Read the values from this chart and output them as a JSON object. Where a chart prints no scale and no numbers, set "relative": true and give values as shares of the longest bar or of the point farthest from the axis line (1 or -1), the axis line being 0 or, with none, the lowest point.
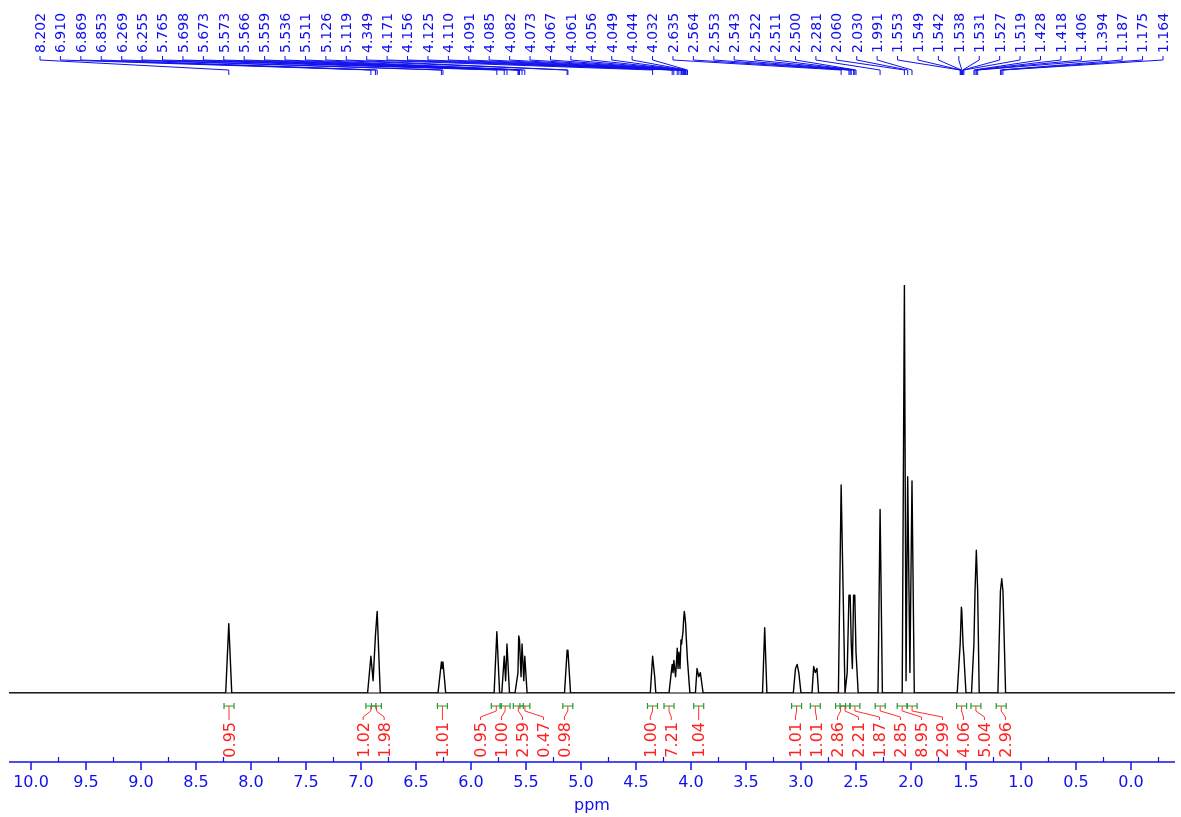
{
  "chart_data": {
    "type": "line",
    "relative": true,
    "color": "#000000",
    "xlabel": "ppm",
    "xlim": [
      10.2,
      -0.4
    ],
    "xticks": [
      {
        "value": 10,
        "label": "10.0"
      },
      9.5,
      {
        "value": 9,
        "label": "9.0"
      },
      8.5,
      {
        "value": 8,
        "label": "8.0"
      },
      7.5,
      {
        "value": 7,
        "label": "7.0"
      },
      6.5,
      {
        "value": 6,
        "label": "6.0"
      },
      5.5,
      {
        "value": 5,
        "label": "5.0"
      },
      4.5,
      {
        "value": 4,
        "label": "4.0"
      },
      3.5,
      {
        "value": 3,
        "label": "3.0"
      },
      2.5,
      {
        "value": 2,
        "label": "2.0"
      },
      1.5,
      {
        "value": 1,
        "label": "1.0"
      },
      0.5,
      {
        "value": 0,
        "label": "0.0"
      }
    ],
    "x": [
      10.2,
      8.23,
      8.202,
      8.175,
      6.94,
      6.91,
      6.89,
      6.869,
      6.853,
      6.825,
      6.3,
      6.269,
      6.262,
      6.255,
      6.23,
      5.79,
      5.765,
      5.74,
      5.72,
      5.698,
      5.685,
      5.673,
      5.65,
      5.6,
      5.573,
      5.566,
      5.559,
      5.545,
      5.536,
      5.52,
      5.511,
      5.49,
      5.15,
      5.126,
      5.122,
      5.119,
      5.095,
      4.37,
      4.349,
      4.33,
      4.32,
      4.2,
      4.171,
      4.163,
      4.156,
      4.14,
      4.125,
      4.118,
      4.11,
      4.1,
      4.091,
      4.085,
      4.082,
      4.073,
      4.067,
      4.061,
      4.056,
      4.049,
      4.044,
      4.032,
      4.01,
      3.96,
      3.945,
      3.93,
      3.915,
      3.89,
      3.35,
      3.33,
      3.31,
      3.07,
      3.05,
      3.035,
      3.02,
      3.0,
      2.9,
      2.885,
      2.87,
      2.855,
      2.84,
      2.66,
      2.635,
      2.6,
      2.58,
      2.564,
      2.553,
      2.543,
      2.533,
      2.522,
      2.511,
      2.5,
      2.48,
      2.3,
      2.281,
      2.26,
      2.08,
      2.06,
      2.045,
      2.03,
      2.01,
      1.991,
      1.97,
      1.58,
      1.553,
      1.549,
      1.542,
      1.538,
      1.531,
      1.527,
      1.519,
      1.5,
      1.45,
      1.428,
      1.418,
      1.406,
      1.394,
      1.38,
      1.21,
      1.187,
      1.175,
      1.164,
      1.14,
      -0.4
    ],
    "values": [
      0,
      0,
      0.17,
      0,
      0,
      0.09,
      0.03,
      0.14,
      0.2,
      0,
      0,
      0.076,
      0.06,
      0.076,
      0,
      0,
      0.15,
      0,
      0,
      0.09,
      0.03,
      0.12,
      0,
      0,
      0.05,
      0.14,
      0.13,
      0.04,
      0.12,
      0.03,
      0.09,
      0,
      0,
      0.105,
      0.09,
      0.105,
      0,
      0,
      0.09,
      0.04,
      0,
      0,
      0.07,
      0.05,
      0.08,
      0.04,
      0.11,
      0.06,
      0.1,
      0.06,
      0.13,
      0.12,
      0.13,
      0.15,
      0.18,
      0.2,
      0.19,
      0.17,
      0.14,
      0.08,
      0,
      0,
      0.06,
      0.04,
      0.05,
      0,
      0,
      0.16,
      0,
      0,
      0.06,
      0.07,
      0.05,
      0,
      0,
      0.065,
      0.05,
      0.06,
      0,
      0,
      0.51,
      0,
      0.05,
      0.24,
      0.24,
      0.12,
      0.06,
      0.24,
      0.24,
      0.1,
      0,
      0,
      0.45,
      0,
      0,
      1,
      0.03,
      0.53,
      0.05,
      0.52,
      0,
      0,
      0.12,
      0.15,
      0.21,
      0.2,
      0.15,
      0.12,
      0.09,
      0,
      0,
      0.12,
      0.25,
      0.35,
      0.25,
      0,
      0,
      0.25,
      0.28,
      0.25,
      0,
      0
    ],
    "annotations": [
      "8.202",
      "6.910",
      "6.869",
      "6.853",
      "6.269",
      "6.255",
      "5.765",
      "5.698",
      "5.673",
      "5.573",
      "5.566",
      "5.559",
      "5.536",
      "5.511",
      "5.126",
      "5.119",
      "4.349",
      "4.171",
      "4.156",
      "4.125",
      "4.110",
      "4.091",
      "4.085",
      "4.082",
      "4.073",
      "4.067",
      "4.061",
      "4.056",
      "4.049",
      "4.044",
      "4.032",
      "2.635",
      "2.564",
      "2.553",
      "2.543",
      "2.522",
      "2.511",
      "2.500",
      "2.281",
      "2.060",
      "2.030",
      "1.991",
      "1.553",
      "1.549",
      "1.542",
      "1.538",
      "1.531",
      "1.527",
      "1.519",
      "1.428",
      "1.418",
      "1.406",
      "1.394",
      "1.187",
      "1.175",
      "1.164",
      {
        "text": "0.95",
        "x": 8.2,
        "y": 0
      },
      {
        "text": "1.02",
        "x": 6.91,
        "y": 0
      },
      {
        "text": "1.98",
        "x": 6.86,
        "y": 0
      },
      {
        "text": "1.01",
        "x": 6.26,
        "y": 0
      },
      {
        "text": "0.95",
        "x": 5.77,
        "y": 0
      },
      {
        "text": "1.00",
        "x": 5.69,
        "y": 0
      },
      {
        "text": "2.59",
        "x": 5.57,
        "y": 0
      },
      {
        "text": "0.47",
        "x": 5.51,
        "y": 0
      },
      {
        "text": "0.98",
        "x": 5.12,
        "y": 0
      },
      {
        "text": "1.00",
        "x": 4.35,
        "y": 0
      },
      {
        "text": "7.21",
        "x": 4.2,
        "y": 0
      },
      {
        "text": "1.04",
        "x": 3.93,
        "y": 0
      },
      {
        "text": "1.01",
        "x": 3.04,
        "y": 0
      },
      {
        "text": "1.01",
        "x": 2.87,
        "y": 0
      },
      {
        "text": "2.86",
        "x": 2.64,
        "y": 0
      },
      {
        "text": "2.21",
        "x": 2.6,
        "y": 0
      },
      {
        "text": "1.87",
        "x": 2.51,
        "y": 0
      },
      {
        "text": "2.85",
        "x": 2.28,
        "y": 0
      },
      {
        "text": "8.95",
        "x": 2.08,
        "y": 0
      },
      {
        "text": "2.99",
        "x": 1.99,
        "y": 0
      },
      {
        "text": "4.06",
        "x": 1.54,
        "y": 0
      },
      {
        "text": "5.04",
        "x": 1.41,
        "y": 0
      },
      {
        "text": "2.96",
        "x": 1.18,
        "y": 0
      }
    ]
  }
}
